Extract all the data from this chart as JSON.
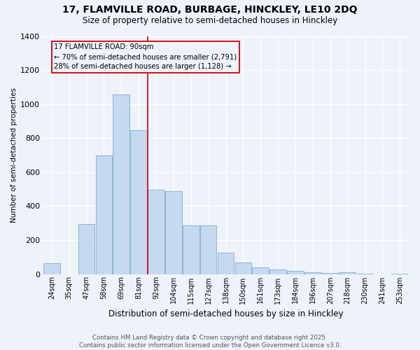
{
  "title1": "17, FLAMVILLE ROAD, BURBAGE, HINCKLEY, LE10 2DQ",
  "title2": "Size of property relative to semi-detached houses in Hinckley",
  "xlabel": "Distribution of semi-detached houses by size in Hinckley",
  "ylabel": "Number of semi-detached properties",
  "categories": [
    "24sqm",
    "35sqm",
    "47sqm",
    "58sqm",
    "69sqm",
    "81sqm",
    "92sqm",
    "104sqm",
    "115sqm",
    "127sqm",
    "138sqm",
    "150sqm",
    "161sqm",
    "173sqm",
    "184sqm",
    "196sqm",
    "207sqm",
    "218sqm",
    "230sqm",
    "241sqm",
    "253sqm"
  ],
  "values": [
    65,
    0,
    295,
    700,
    1055,
    845,
    495,
    490,
    285,
    285,
    125,
    70,
    40,
    25,
    20,
    10,
    5,
    10,
    3,
    0,
    3
  ],
  "bar_color": "#c5d9f0",
  "bar_edge_color": "#7bafd4",
  "property_line_x": 6.0,
  "property_label": "17 FLAMVILLE ROAD: 90sqm",
  "annotation_line1": "← 70% of semi-detached houses are smaller (2,791)",
  "annotation_line2": "28% of semi-detached houses are larger (1,128) →",
  "annotation_box_color": "#cc0000",
  "ylim": [
    0,
    1400
  ],
  "yticks": [
    0,
    200,
    400,
    600,
    800,
    1000,
    1200,
    1400
  ],
  "footer_line1": "Contains HM Land Registry data © Crown copyright and database right 2025.",
  "footer_line2": "Contains public sector information licensed under the Open Government Licence v3.0.",
  "bg_color": "#eef2fb",
  "grid_color": "#ffffff",
  "title_fontsize": 10,
  "subtitle_fontsize": 8.5
}
